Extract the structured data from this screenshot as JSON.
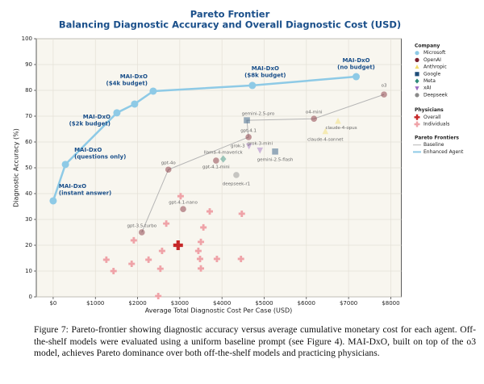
{
  "chart_data": {
    "type": "scatter",
    "title": [
      "Pareto Frontier",
      "Balancing Diagnostic Accuracy and Overall Diagnostic Cost (USD)"
    ],
    "xlabel": "Average Total Diagnostic Cost Per Case (USD)",
    "ylabel": "Diagnostic Accuracy (%)",
    "xlim": [
      -400,
      8250
    ],
    "ylim": [
      0,
      100
    ],
    "xticks": [
      {
        "value": 0,
        "label": "$0"
      },
      {
        "value": 1000,
        "label": "$1000"
      },
      {
        "value": 2000,
        "label": "$2000"
      },
      {
        "value": 3000,
        "label": "$3000"
      },
      {
        "value": 4000,
        "label": "$4000"
      },
      {
        "value": 5000,
        "label": "$5000"
      },
      {
        "value": 6000,
        "label": "$6000"
      },
      {
        "value": 7000,
        "label": "$7000"
      },
      {
        "value": 8000,
        "label": "$8000"
      }
    ],
    "yticks": [
      0,
      10,
      20,
      30,
      40,
      50,
      60,
      70,
      80,
      90,
      100
    ],
    "grid": true,
    "legend_position": "right",
    "company_title": "Company",
    "companies": [
      {
        "name": "Microsoft",
        "color": "#8ecae6",
        "marker": "circle"
      },
      {
        "name": "OpenAI",
        "color": "#7b1f2c",
        "marker": "circle"
      },
      {
        "name": "Anthropic",
        "color": "#f2dc6b",
        "marker": "triangle"
      },
      {
        "name": "Google",
        "color": "#1f4e79",
        "marker": "square"
      },
      {
        "name": "Meta",
        "color": "#2e8b7a",
        "marker": "diamond"
      },
      {
        "name": "xAI",
        "color": "#9b6bc2",
        "marker": "triangle-down"
      },
      {
        "name": "Deepseek",
        "color": "#8a8a8a",
        "marker": "circle"
      }
    ],
    "models": [
      {
        "name": "gpt-3.5-turbo",
        "company": "OpenAI",
        "x": 2100,
        "y": 25
      },
      {
        "name": "gpt-4o",
        "company": "OpenAI",
        "x": 2730,
        "y": 49.3
      },
      {
        "name": "gpt-4.1-nano",
        "company": "OpenAI",
        "x": 3080,
        "y": 34
      },
      {
        "name": "gpt-4.1-mini",
        "company": "OpenAI",
        "x": 3860,
        "y": 52.8
      },
      {
        "name": "llama-4-maverick",
        "company": "Meta",
        "x": 4030,
        "y": 53.4
      },
      {
        "name": "deepseek-r1",
        "company": "Deepseek",
        "x": 4340,
        "y": 47.2
      },
      {
        "name": "grok-3",
        "company": "xAI",
        "x": 4640,
        "y": 58.5
      },
      {
        "name": "grok-3-mini",
        "company": "xAI",
        "x": 4900,
        "y": 56.9
      },
      {
        "name": "gpt-4.1",
        "company": "OpenAI",
        "x": 4630,
        "y": 61.9
      },
      {
        "name": "gemini-2.5-flash",
        "company": "Google",
        "x": 5260,
        "y": 56.3
      },
      {
        "name": "gemini-2.5-pro",
        "company": "Google",
        "x": 4590,
        "y": 68.4
      },
      {
        "name": "o4-mini",
        "company": "OpenAI",
        "x": 6180,
        "y": 69
      },
      {
        "name": "claude-4-sonnet",
        "company": "Anthropic",
        "x": 6450,
        "y": 64
      },
      {
        "name": "claude-4-opus",
        "company": "Anthropic",
        "x": 6750,
        "y": 68
      },
      {
        "name": "o3",
        "company": "OpenAI",
        "x": 7840,
        "y": 78.4
      }
    ],
    "physicians_title": "Physicians",
    "physicians": {
      "overall": {
        "name": "Overall",
        "color": "#c62828",
        "x": 2960,
        "y": 20
      },
      "individuals": {
        "name": "Individuals",
        "color": "#efa3a8",
        "x": [
          1260,
          1430,
          1860,
          1910,
          2260,
          2540,
          2580,
          2680,
          2490,
          3020,
          3440,
          3480,
          3500,
          3560,
          3710,
          3880,
          4450,
          4470,
          3500
        ],
        "values": [
          14.4,
          10,
          12.8,
          21.9,
          14.4,
          10.9,
          17.8,
          28.4,
          0.3,
          39,
          17.8,
          14.7,
          21.3,
          26.9,
          33.1,
          14.7,
          14.7,
          32.2,
          11
        ]
      }
    },
    "frontier_title": "Pareto Frontiers",
    "series": [
      {
        "name": "Baseline",
        "color": "#b5b5b5",
        "x": [
          2100,
          2730,
          4630,
          4590,
          6180,
          7840
        ],
        "values": [
          25,
          49.3,
          61.9,
          68.4,
          69,
          78.4
        ]
      },
      {
        "name": "Enhanced Agent",
        "color": "#8ecae6",
        "x": [
          0,
          290,
          1510,
          1930,
          2370,
          4720,
          7180
        ],
        "values": [
          37.2,
          51.3,
          71.3,
          74.7,
          79.7,
          81.9,
          85.3
        ],
        "point_labels": [
          [
            "MAI-DxO",
            "(instant answer)"
          ],
          [
            "MAI-DxO",
            "(questions only)"
          ],
          [
            "MAI-DxO",
            "($2k budget)"
          ],
          null,
          [
            "MAI-DxO",
            "($4k budget)"
          ],
          [
            "MAI-DxO",
            "($8k budget)"
          ],
          [
            "MAI-DxO",
            "(no budget)"
          ]
        ]
      }
    ]
  },
  "caption": "Figure 7: Pareto-frontier showing diagnostic accuracy versus average cumulative monetary cost for each agent. Off-the-shelf models were evaluated using a uniform baseline prompt (see Figure 4). MAI-DxO, built on top of the o3 model, achieves Pareto dominance over both off-the-shelf models and practicing physicians."
}
